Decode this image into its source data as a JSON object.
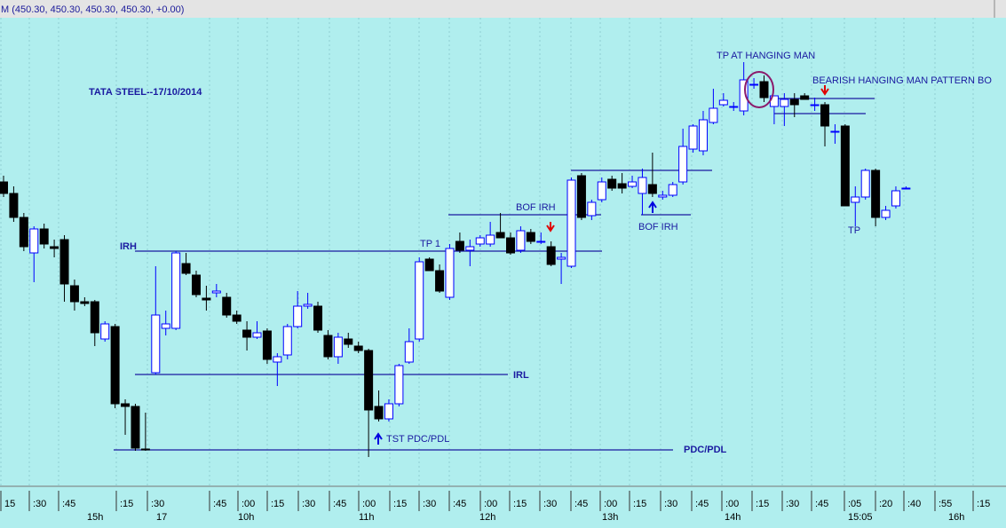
{
  "chart_data": {
    "type": "candlestick",
    "header": "M (450.30, 450.30, 450.30, 450.30, +0.00)",
    "title": "TATA STEEL--17/10/2014",
    "open": [
      450.65,
      450.0,
      448.65,
      446.65,
      448.0,
      447.0,
      447.4,
      444.8,
      443.9,
      443.9,
      441.8,
      442.5,
      438.15,
      438.0,
      435.6,
      439.9,
      442.4,
      442.4,
      446.05,
      445.4,
      444.1,
      444.4,
      444.15,
      443.15,
      442.3,
      441.9,
      442.25,
      440.5,
      440.9,
      442.5,
      443.65,
      443.65,
      442.0,
      440.8,
      441.8,
      441.4,
      441.15,
      438.0,
      437.3,
      438.15,
      440.5,
      441.8,
      446.3,
      445.65,
      444.15,
      447.3,
      446.8,
      447.15,
      447.15,
      447.8,
      447.5,
      446.8,
      447.8,
      447.3,
      447.0,
      446.3,
      445.9,
      451.0,
      448.75,
      449.65,
      450.8,
      450.55,
      450.4,
      450.0,
      450.5,
      449.8,
      449.9,
      450.65,
      452.5,
      452.4,
      454.0,
      455.0,
      454.9,
      454.65,
      456.15,
      456.3,
      454.9,
      454.9,
      455.3,
      455.5,
      455.0,
      455.0,
      453.5,
      453.8,
      449.5,
      449.8,
      451.3,
      448.65,
      449.3,
      450.3
    ],
    "high": [
      451.0,
      450.4,
      448.9,
      448.15,
      448.3,
      447.4,
      447.65,
      445.15,
      444.15,
      444.0,
      442.8,
      442.65,
      438.4,
      438.15,
      437.65,
      445.9,
      443.4,
      446.75,
      446.65,
      445.65,
      444.8,
      444.9,
      444.4,
      443.4,
      442.8,
      442.8,
      442.4,
      441.0,
      442.65,
      444.5,
      444.4,
      443.9,
      442.3,
      442.15,
      442.15,
      441.65,
      441.25,
      438.9,
      438.4,
      440.4,
      442.4,
      446.4,
      446.4,
      446.0,
      447.15,
      447.8,
      447.4,
      447.65,
      448.4,
      448.9,
      447.8,
      448.15,
      448.0,
      447.8,
      447.3,
      446.65,
      450.9,
      451.15,
      449.65,
      450.9,
      451.0,
      451.15,
      451.0,
      451.4,
      452.3,
      450.15,
      450.65,
      453.65,
      453.9,
      454.65,
      455.9,
      455.65,
      455.15,
      457.4,
      456.5,
      456.65,
      455.5,
      455.65,
      455.65,
      455.65,
      455.4,
      455.15,
      453.9,
      453.9,
      450.4,
      451.4,
      451.4,
      449.3,
      450.4,
      450.4
    ],
    "low": [
      449.8,
      448.4,
      446.75,
      445.0,
      446.9,
      446.4,
      443.9,
      443.4,
      443.65,
      441.4,
      441.65,
      437.9,
      436.4,
      435.5,
      435.5,
      439.8,
      442.0,
      442.3,
      445.4,
      444.15,
      443.4,
      444.15,
      443.0,
      442.65,
      441.15,
      441.8,
      440.4,
      439.15,
      440.65,
      442.4,
      443.5,
      442.15,
      440.65,
      440.4,
      441.3,
      441.0,
      435.15,
      437.15,
      437.15,
      438.0,
      440.4,
      441.65,
      445.65,
      444.4,
      444.0,
      446.65,
      445.9,
      447.0,
      447.0,
      447.5,
      446.55,
      446.65,
      447.15,
      447.15,
      445.9,
      444.9,
      445.8,
      448.5,
      448.5,
      449.5,
      450.15,
      450.0,
      450.3,
      448.8,
      449.8,
      449.65,
      449.8,
      450.5,
      452.3,
      452.15,
      453.9,
      454.9,
      454.65,
      454.4,
      455.9,
      455.15,
      453.9,
      453.8,
      454.3,
      455.3,
      454.65,
      452.65,
      452.8,
      449.3,
      448.15,
      449.65,
      448.15,
      448.5,
      449.15,
      450.25
    ],
    "close": [
      450.0,
      448.65,
      447.0,
      448.0,
      447.15,
      446.9,
      444.9,
      443.9,
      443.8,
      442.15,
      442.65,
      438.15,
      438.0,
      435.65,
      435.55,
      443.15,
      442.65,
      446.65,
      445.5,
      444.3,
      444.0,
      444.5,
      443.15,
      442.8,
      441.9,
      442.15,
      440.65,
      440.8,
      442.5,
      443.65,
      443.75,
      442.3,
      440.8,
      441.9,
      441.5,
      441.15,
      437.8,
      437.3,
      438.15,
      440.3,
      441.65,
      446.15,
      445.65,
      444.5,
      446.9,
      446.8,
      447.0,
      447.5,
      447.65,
      447.5,
      446.65,
      447.9,
      447.3,
      447.3,
      446.0,
      446.4,
      450.75,
      448.65,
      449.5,
      450.65,
      450.3,
      450.3,
      450.65,
      450.9,
      450.0,
      449.9,
      450.5,
      452.65,
      453.8,
      454.15,
      454.8,
      455.25,
      454.9,
      456.4,
      456.15,
      455.4,
      455.5,
      455.3,
      455.0,
      455.3,
      455.0,
      453.8,
      453.5,
      449.3,
      449.8,
      451.3,
      448.65,
      449.05,
      450.15,
      450.3
    ],
    "ylim": [
      433.4,
      459.9
    ],
    "up_color": "#ffffff",
    "up_edge": "#0000ff",
    "down_color": "#000000",
    "level_color": "#1a1aa0",
    "levels": [
      446.75,
      439.8,
      435.55,
      448.8,
      448.8,
      451.3,
      455.35,
      454.5
    ],
    "annotations": [
      "IRH",
      "IRL",
      "PDC/PDL",
      "BOF IRH",
      "BOF IRH",
      "TP 1",
      "TP AT HANGING MAN",
      "BEARISH HANGING MAN PATTERN BO",
      "TST PDC/PDL",
      "TP"
    ],
    "xtick_labels": [
      "15",
      ":30",
      ":45",
      ":15",
      ":30",
      ":45",
      ":00",
      ":15",
      ":30",
      ":45",
      ":00",
      ":15",
      ":30",
      ":45",
      ":00",
      ":15",
      ":30",
      ":45",
      ":00",
      ":15",
      ":30",
      ":45",
      ":00",
      ":15",
      ":30",
      ":45",
      ":05",
      ":20",
      ":40",
      ":55",
      ":15"
    ],
    "xtick_labels_lower": [
      "15h",
      "17",
      "10h",
      "11h",
      "12h",
      "13h",
      "14h",
      "15:05",
      "16h"
    ]
  }
}
